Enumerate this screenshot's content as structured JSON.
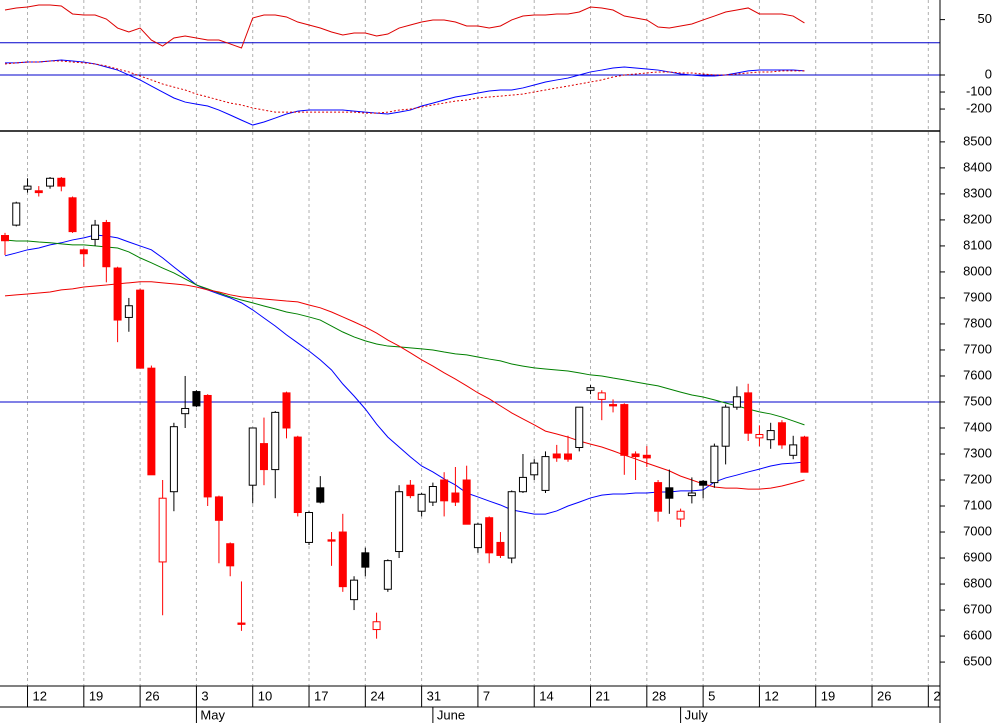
{
  "chart_data": {
    "type": "candlestick",
    "categories": [
      null,
      null,
      "12",
      null,
      null,
      null,
      null,
      "19",
      null,
      null,
      null,
      null,
      "26",
      null,
      null,
      null,
      null,
      "3",
      null,
      null,
      null,
      null,
      "10",
      null,
      null,
      null,
      null,
      "17",
      null,
      null,
      null,
      null,
      "24",
      null,
      null,
      null,
      null,
      "31",
      null,
      null,
      null,
      null,
      "7",
      null,
      null,
      null,
      null,
      "14",
      null,
      null,
      null,
      null,
      "21",
      null,
      null,
      null,
      null,
      "28",
      null,
      null,
      null,
      null,
      "5",
      null,
      null,
      null,
      null,
      "12",
      null,
      null,
      null,
      null,
      "19",
      null,
      null,
      null,
      null,
      "26",
      null,
      null,
      null,
      null,
      "2"
    ],
    "months": [
      null,
      null,
      null,
      null,
      null,
      null,
      null,
      null,
      null,
      null,
      null,
      null,
      null,
      null,
      null,
      null,
      null,
      "May",
      null,
      null,
      null,
      null,
      null,
      null,
      null,
      null,
      null,
      null,
      null,
      null,
      null,
      null,
      null,
      null,
      null,
      null,
      null,
      null,
      "June",
      null,
      null,
      null,
      null,
      null,
      null,
      null,
      null,
      null,
      null,
      null,
      null,
      null,
      null,
      null,
      null,
      null,
      null,
      null,
      null,
      null,
      "July",
      null,
      null,
      null,
      null,
      null,
      null,
      null,
      null,
      null,
      null,
      null,
      null,
      null,
      null,
      null,
      null,
      null,
      null,
      null,
      null,
      null,
      null
    ],
    "ylim": [
      6408,
      8538
    ],
    "yticks": [
      6500,
      6600,
      6700,
      6800,
      6900,
      7000,
      7100,
      7200,
      7300,
      7400,
      7500,
      7600,
      7700,
      7800,
      7900,
      8000,
      8100,
      8200,
      8300,
      8400,
      8500
    ],
    "grid": true,
    "hlines": [
      7500
    ],
    "hline_color": "#0000cc",
    "candle_colors": {
      "rise": "#000000",
      "fall": "#ff0000",
      "hollow": "#ffffff"
    },
    "candles": {
      "open": [
        8140,
        8180,
        8318,
        8312,
        8330,
        8360,
        8285,
        8085,
        8125,
        8190,
        8015,
        7825,
        7930,
        7630,
        6885,
        7155,
        7455,
        7540,
        7525,
        7135,
        6955,
        6650,
        7180,
        7340,
        7240,
        7535,
        7365,
        6960,
        7170,
        6970,
        7000,
        6740,
        6920,
        6625,
        6780,
        6925,
        7180,
        7080,
        7115,
        7200,
        7150,
        7200,
        6940,
        7055,
        6960,
        6900,
        7155,
        7220,
        7160,
        7300,
        7300,
        7325,
        7545,
        7510,
        7490,
        7490,
        7300,
        7295,
        7190,
        7170,
        7050,
        7140,
        7195,
        7190,
        7330,
        7480,
        7535,
        7362,
        7355,
        7420,
        7295,
        7365,
        null,
        null,
        null,
        null,
        null,
        null,
        null,
        null,
        null,
        null,
        null
      ],
      "high": [
        8150,
        8270,
        8360,
        8330,
        8365,
        8365,
        8290,
        8090,
        8200,
        8200,
        8020,
        7900,
        7935,
        7640,
        7200,
        7420,
        7600,
        7545,
        7530,
        7140,
        6960,
        6810,
        7400,
        7440,
        7465,
        7540,
        7370,
        7080,
        7215,
        7000,
        7070,
        6830,
        6940,
        6690,
        6895,
        7180,
        7200,
        7150,
        7190,
        7230,
        7250,
        7255,
        7035,
        7060,
        7000,
        7160,
        7300,
        7280,
        7310,
        7335,
        7370,
        7480,
        7565,
        7545,
        7510,
        7495,
        7310,
        7330,
        7200,
        7240,
        7090,
        7210,
        7200,
        7340,
        7490,
        7560,
        7570,
        7410,
        7420,
        7430,
        7370,
        7370,
        null,
        null,
        null,
        null,
        null,
        null,
        null,
        null,
        null,
        null,
        null
      ],
      "low": [
        8065,
        8175,
        8305,
        8290,
        8320,
        8310,
        8150,
        8020,
        8100,
        7960,
        7730,
        7770,
        7630,
        7220,
        6680,
        7080,
        7400,
        7480,
        7100,
        6880,
        6830,
        6620,
        7110,
        7180,
        7130,
        7360,
        7060,
        6950,
        7110,
        6870,
        6770,
        6700,
        6830,
        6590,
        6770,
        6900,
        7130,
        7060,
        7100,
        7060,
        7100,
        7030,
        6920,
        6880,
        6900,
        6880,
        7150,
        7200,
        7150,
        7270,
        7270,
        7310,
        7530,
        7430,
        7460,
        7220,
        7200,
        7250,
        7040,
        7070,
        7020,
        7110,
        7130,
        7170,
        7260,
        7470,
        7350,
        7330,
        7320,
        7320,
        7280,
        7230,
        null,
        null,
        null,
        null,
        null,
        null,
        null,
        null,
        null,
        null,
        null
      ],
      "close": [
        8120,
        8265,
        8330,
        8305,
        8360,
        8330,
        8155,
        8070,
        8180,
        8020,
        7815,
        7870,
        7630,
        7220,
        7130,
        7405,
        7475,
        7485,
        7135,
        7045,
        6870,
        6645,
        7400,
        7240,
        7460,
        7400,
        7075,
        7075,
        7115,
        6965,
        6790,
        6815,
        6865,
        6655,
        6890,
        7155,
        7140,
        7145,
        7175,
        7120,
        7115,
        7030,
        7030,
        6920,
        6910,
        7155,
        7210,
        7265,
        7290,
        7285,
        7280,
        7480,
        7555,
        7535,
        7485,
        7295,
        7290,
        7285,
        7080,
        7130,
        7080,
        7150,
        7180,
        7330,
        7480,
        7520,
        7380,
        7375,
        7390,
        7335,
        7335,
        7230,
        null,
        null,
        null,
        null,
        null,
        null,
        null,
        null,
        null,
        null,
        null
      ]
    },
    "series": [
      {
        "color": "#0000ff",
        "values": [
          8062,
          8073,
          8085,
          8092,
          8104,
          8112,
          8123,
          8131,
          8142,
          8138,
          8131,
          8115,
          8100,
          8085,
          8054,
          8019,
          7985,
          7950,
          7931,
          7915,
          7900,
          7881,
          7854,
          7823,
          7792,
          7758,
          7727,
          7696,
          7662,
          7623,
          7569,
          7523,
          7473,
          7415,
          7365,
          7327,
          7289,
          7254,
          7231,
          7204,
          7181,
          7150,
          7135,
          7119,
          7104,
          7085,
          7077,
          7069,
          7069,
          7081,
          7100,
          7115,
          7131,
          7142,
          7146,
          7146,
          7150,
          7150,
          7154,
          7154,
          7158,
          7158,
          7162,
          7192,
          7208,
          7219,
          7231,
          7242,
          7254,
          7262,
          7265,
          7269,
          null,
          null,
          null,
          null,
          null,
          null,
          null,
          null,
          null,
          null,
          null
        ]
      },
      {
        "color": "#008000",
        "values": [
          8123,
          8119,
          8119,
          8115,
          8112,
          8108,
          8104,
          8104,
          8100,
          8096,
          8092,
          8077,
          8054,
          8035,
          8015,
          7996,
          7973,
          7950,
          7935,
          7919,
          7904,
          7892,
          7881,
          7869,
          7858,
          7846,
          7838,
          7827,
          7815,
          7792,
          7769,
          7750,
          7735,
          7723,
          7715,
          7712,
          7708,
          7704,
          7700,
          7692,
          7685,
          7681,
          7673,
          7665,
          7658,
          7646,
          7638,
          7631,
          7627,
          7623,
          7619,
          7612,
          7604,
          7600,
          7592,
          7585,
          7577,
          7569,
          7562,
          7550,
          7538,
          7527,
          7519,
          7508,
          7496,
          7485,
          7473,
          7462,
          7454,
          7442,
          7427,
          7412,
          null,
          null,
          null,
          null,
          null,
          null,
          null,
          null,
          null,
          null,
          null
        ]
      },
      {
        "color": "#ee0000",
        "values": [
          7908,
          7912,
          7915,
          7919,
          7923,
          7931,
          7935,
          7942,
          7946,
          7950,
          7954,
          7958,
          7962,
          7962,
          7958,
          7954,
          7950,
          7942,
          7931,
          7923,
          7912,
          7904,
          7900,
          7896,
          7892,
          7888,
          7885,
          7873,
          7862,
          7846,
          7827,
          7808,
          7788,
          7765,
          7738,
          7715,
          7689,
          7662,
          7638,
          7612,
          7588,
          7562,
          7535,
          7512,
          7485,
          7458,
          7435,
          7412,
          7388,
          7377,
          7365,
          7350,
          7338,
          7327,
          7312,
          7296,
          7281,
          7265,
          7250,
          7235,
          7215,
          7200,
          7185,
          7173,
          7169,
          7169,
          7165,
          7165,
          7169,
          7177,
          7188,
          7200,
          null,
          null,
          null,
          null,
          null,
          null,
          null,
          null,
          null,
          null,
          null
        ]
      }
    ],
    "indicators": [
      {
        "type": "line",
        "ylim": [
          15,
          67
        ],
        "yticks": [
          50
        ],
        "hlines": [
          30
        ],
        "series": [
          {
            "color": "#dd0000",
            "values": [
              58.3,
              60.1,
              60.9,
              62.7,
              62.7,
              61.8,
              54.9,
              54.0,
              54.0,
              50.5,
              42.7,
              39.3,
              42.7,
              32.3,
              27.1,
              34.1,
              35.8,
              34.1,
              32.3,
              32.3,
              28.9,
              25.4,
              51.4,
              54.0,
              54.0,
              52.3,
              47.9,
              45.3,
              42.7,
              39.3,
              36.7,
              38.4,
              38.4,
              35.8,
              37.5,
              42.7,
              45.3,
              47.9,
              49.7,
              49.7,
              47.9,
              44.5,
              44.5,
              42.7,
              44.5,
              49.7,
              53.1,
              54.0,
              54.0,
              54.9,
              54.9,
              56.6,
              60.9,
              60.1,
              58.3,
              53.1,
              51.4,
              49.7,
              43.6,
              42.7,
              44.5,
              46.2,
              49.7,
              53.1,
              56.6,
              58.3,
              60.1,
              54.9,
              54.9,
              54.9,
              53.1,
              47.1,
              null,
              null,
              null,
              null,
              null,
              null,
              null,
              null,
              null,
              null,
              null
            ]
          }
        ]
      },
      {
        "type": "line",
        "ylim": [
          -329,
          188
        ],
        "yticks": [
          0,
          -100,
          -200
        ],
        "hlines": [
          0
        ],
        "series": [
          {
            "color": "#0000ff",
            "values": [
              71,
              71,
              76,
              76,
              82,
              88,
              82,
              76,
              65,
              47,
              29,
              0,
              -29,
              -65,
              -100,
              -135,
              -159,
              -171,
              -182,
              -206,
              -235,
              -265,
              -294,
              -276,
              -253,
              -229,
              -212,
              -206,
              -206,
              -206,
              -206,
              -212,
              -218,
              -224,
              -229,
              -218,
              -206,
              -182,
              -165,
              -147,
              -129,
              -118,
              -106,
              -94,
              -88,
              -88,
              -76,
              -59,
              -41,
              -29,
              -18,
              0,
              18,
              29,
              41,
              47,
              41,
              35,
              29,
              18,
              6,
              0,
              -6,
              -6,
              0,
              12,
              24,
              29,
              29,
              29,
              29,
              24,
              null,
              null,
              null,
              null,
              null,
              null,
              null,
              null,
              null,
              null,
              null
            ]
          },
          {
            "color": "#dd0000",
            "dashed": true,
            "values": [
              65,
              71,
              76,
              76,
              82,
              82,
              76,
              71,
              65,
              53,
              35,
              18,
              -6,
              -29,
              -53,
              -71,
              -88,
              -112,
              -129,
              -147,
              -165,
              -176,
              -194,
              -206,
              -218,
              -218,
              -218,
              -218,
              -218,
              -218,
              -218,
              -218,
              -224,
              -224,
              -218,
              -206,
              -200,
              -188,
              -176,
              -165,
              -153,
              -147,
              -135,
              -129,
              -124,
              -118,
              -112,
              -100,
              -88,
              -76,
              -65,
              -53,
              -41,
              -29,
              -12,
              0,
              6,
              12,
              18,
              18,
              12,
              12,
              6,
              0,
              0,
              6,
              12,
              18,
              18,
              24,
              24,
              24,
              null,
              null,
              null,
              null,
              null,
              null,
              null,
              null,
              null,
              null,
              null
            ]
          }
        ]
      }
    ]
  }
}
